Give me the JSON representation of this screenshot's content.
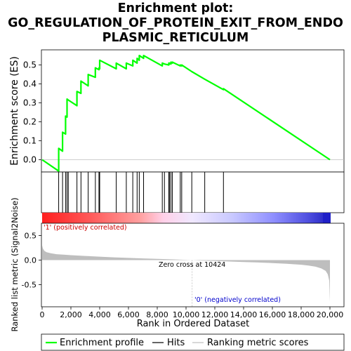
{
  "title_lines": [
    "Enrichment plot:",
    "GO_REGULATION_OF_PROTEIN_EXIT_FROM_ENDO",
    "PLASMIC_RETICULUM"
  ],
  "colors": {
    "es_line": "#00ff00",
    "hits": "#000000",
    "positive_label": "#cc0000",
    "negative_label": "#0000cc",
    "metric_fill": "#bebebe",
    "zero_cross_line": "#bebebe"
  },
  "chart_data": [
    {
      "type": "line",
      "name": "enrichment-profile",
      "ylabel": "Enrichment score (ES)",
      "xlim": [
        0,
        21000
      ],
      "ylim": [
        -0.065,
        0.58
      ],
      "yticks": [
        0.0,
        0.1,
        0.2,
        0.3,
        0.4,
        0.5
      ],
      "ytick_labels": [
        "0.0",
        "0.1",
        "0.2",
        "0.3",
        "0.4",
        "0.5"
      ],
      "x": [
        0,
        1150,
        1150,
        1420,
        1420,
        1630,
        1630,
        1730,
        1730,
        1820,
        1820,
        2420,
        2420,
        2700,
        2700,
        3200,
        3200,
        3700,
        3700,
        3950,
        3950,
        4000,
        4000,
        5150,
        5150,
        5850,
        5850,
        6300,
        6300,
        6600,
        6600,
        6750,
        6750,
        7050,
        7050,
        8350,
        8350,
        8500,
        8500,
        8800,
        8800,
        8850,
        8850,
        8950,
        8950,
        9050,
        9050,
        9600,
        9600,
        9700,
        9700,
        10400,
        10400,
        11300,
        11300,
        12600,
        12600,
        20000
      ],
      "y": [
        0.0,
        -0.06,
        0.06,
        0.045,
        0.145,
        0.135,
        0.23,
        0.225,
        0.32,
        0.315,
        0.315,
        0.285,
        0.36,
        0.35,
        0.415,
        0.39,
        0.45,
        0.435,
        0.485,
        0.475,
        0.485,
        0.48,
        0.525,
        0.48,
        0.51,
        0.48,
        0.51,
        0.495,
        0.525,
        0.51,
        0.535,
        0.525,
        0.55,
        0.535,
        0.55,
        0.495,
        0.51,
        0.505,
        0.505,
        0.5,
        0.51,
        0.505,
        0.51,
        0.505,
        0.515,
        0.51,
        0.515,
        0.495,
        0.5,
        0.495,
        0.5,
        0.465,
        0.465,
        0.425,
        0.425,
        0.37,
        0.375,
        0.0
      ]
    },
    {
      "type": "scatter",
      "name": "hits",
      "x": [
        1150,
        1420,
        1630,
        1730,
        1820,
        2420,
        2700,
        3200,
        3700,
        3950,
        4000,
        5150,
        5850,
        6300,
        6600,
        6750,
        7050,
        8350,
        8500,
        8800,
        8850,
        8950,
        9050,
        9600,
        9700,
        10400,
        11300,
        12600
      ]
    },
    {
      "type": "area",
      "name": "ranking-metric",
      "xlabel": "Rank in Ordered Dataset",
      "ylabel": "Ranked list metric (Signal2Noise)",
      "xlim": [
        0,
        21000
      ],
      "ylim": [
        -0.95,
        0.75
      ],
      "yticks": [
        -0.5,
        0.0,
        0.5
      ],
      "ytick_labels": [
        "-0.5",
        "0.0",
        "0.5"
      ],
      "xticks": [
        0,
        2000,
        4000,
        6000,
        8000,
        10000,
        12000,
        14000,
        16000,
        18000,
        20000
      ],
      "xtick_labels": [
        "0",
        "2,000",
        "4,000",
        "6,000",
        "8,000",
        "10,000",
        "12,000",
        "14,000",
        "16,000",
        "18,000",
        "20,000"
      ],
      "x": [
        0,
        50,
        150,
        300,
        600,
        1000,
        1500,
        2000,
        3000,
        4000,
        5000,
        6000,
        7000,
        8000,
        9000,
        10000,
        10424,
        11000,
        12000,
        13000,
        14000,
        15000,
        16000,
        17000,
        18000,
        18500,
        19000,
        19400,
        19700,
        19850,
        19950,
        20000
      ],
      "y": [
        0.3,
        0.24,
        0.19,
        0.16,
        0.14,
        0.12,
        0.11,
        0.1,
        0.085,
        0.07,
        0.055,
        0.045,
        0.035,
        0.025,
        0.015,
        0.005,
        0.0,
        -0.008,
        -0.018,
        -0.028,
        -0.038,
        -0.048,
        -0.06,
        -0.075,
        -0.095,
        -0.11,
        -0.135,
        -0.17,
        -0.22,
        -0.29,
        -0.42,
        -0.85
      ],
      "annotations": [
        "'1' (positively correlated)",
        "Zero cross at 10424",
        "'0' (negatively correlated)"
      ]
    }
  ],
  "legend": {
    "items": [
      {
        "label": "Enrichment profile"
      },
      {
        "label": "Hits"
      },
      {
        "label": "Ranking metric scores"
      }
    ]
  }
}
